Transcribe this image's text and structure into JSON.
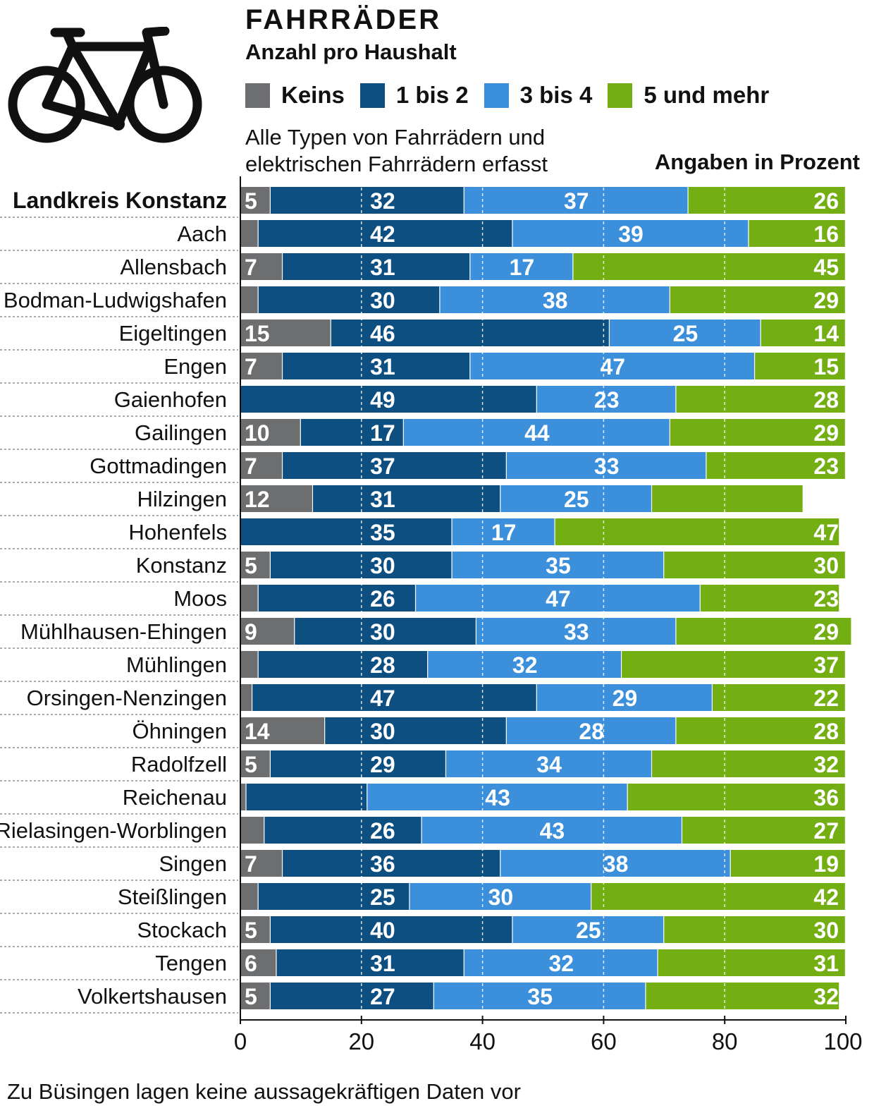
{
  "header": {
    "title": "FAHRRÄDER",
    "subtitle": "Anzahl pro Haushalt",
    "note_line1": "Alle Typen von Fahrrädern und",
    "note_line2": "elektrischen Fahrrädern erfasst",
    "units": "Angaben in Prozent"
  },
  "footnote": "Zu Büsingen  lagen keine aussagekräftigen Daten vor",
  "icons": {
    "illustration": "bicycle-icon"
  },
  "chart_data": {
    "type": "bar",
    "orientation": "horizontal",
    "stacked": true,
    "title": "FAHRRÄDER",
    "subtitle": "Anzahl pro Haushalt",
    "xlabel": "",
    "ylabel": "",
    "xlim": [
      0,
      100
    ],
    "xticks": [
      0,
      20,
      40,
      60,
      80,
      100
    ],
    "grid": "vertical dashed at 20, 40, 60, 80",
    "legend_position": "top",
    "categories": [
      "Landkreis Konstanz",
      "Aach",
      "Allensbach",
      "Bodman-Ludwigshafen",
      "Eigeltingen",
      "Engen",
      "Gaienhofen",
      "Gailingen",
      "Gottmadingen",
      "Hilzingen",
      "Hohenfels",
      "Konstanz",
      "Moos",
      "Mühlhausen-Ehingen",
      "Mühlingen",
      "Orsingen-Nenzingen",
      "Öhningen",
      "Radolfzell",
      "Reichenau",
      "Rielasingen-Worblingen",
      "Singen",
      "Steißlingen",
      "Stockach",
      "Tengen",
      "Volkertshausen"
    ],
    "series": [
      {
        "name": "Keins",
        "color": "#6d6e70",
        "values": [
          5,
          3,
          7,
          3,
          15,
          7,
          0,
          10,
          7,
          12,
          0,
          5,
          3,
          9,
          3,
          2,
          14,
          5,
          1,
          4,
          7,
          3,
          5,
          6,
          5
        ],
        "labels": [
          "5",
          "",
          "7",
          "",
          "15",
          "7",
          "",
          "10",
          "7",
          "12",
          "",
          "5",
          "",
          "9",
          "",
          "",
          "14",
          "5",
          "",
          "",
          "7",
          "",
          "5",
          "6",
          "5"
        ]
      },
      {
        "name": "1 bis 2",
        "color": "#0e4f82",
        "values": [
          32,
          42,
          31,
          30,
          46,
          31,
          49,
          17,
          37,
          31,
          35,
          30,
          26,
          30,
          28,
          47,
          30,
          29,
          20,
          26,
          36,
          25,
          40,
          31,
          27
        ],
        "labels": [
          "32",
          "42",
          "31",
          "30",
          "46",
          "31",
          "49",
          "17",
          "37",
          "31",
          "35",
          "30",
          "26",
          "30",
          "28",
          "47",
          "30",
          "29",
          "20",
          "26",
          "36",
          "25",
          "40",
          "31",
          "27"
        ]
      },
      {
        "name": "3 bis 4",
        "color": "#3b8fdb",
        "values": [
          37,
          39,
          17,
          38,
          25,
          47,
          23,
          44,
          33,
          25,
          17,
          35,
          47,
          33,
          32,
          29,
          28,
          34,
          43,
          43,
          38,
          30,
          25,
          32,
          35
        ],
        "labels": [
          "37",
          "39",
          "17",
          "38",
          "25",
          "47",
          "23",
          "44",
          "33",
          "25",
          "17",
          "35",
          "47",
          "33",
          "32",
          "29",
          "28",
          "34",
          "43",
          "43",
          "38",
          "30",
          "25",
          "32",
          "35"
        ]
      },
      {
        "name": "5 und mehr",
        "color": "#73ae12",
        "values": [
          26,
          16,
          45,
          29,
          14,
          15,
          28,
          29,
          23,
          25,
          47,
          30,
          23,
          29,
          37,
          22,
          28,
          32,
          36,
          27,
          19,
          42,
          30,
          31,
          32
        ],
        "labels": [
          "26",
          "16",
          "45",
          "29",
          "14",
          "15",
          "28",
          "29",
          "23",
          "25",
          "47",
          "30",
          "23",
          "29",
          "37",
          "22",
          "28",
          "32",
          "36",
          "27",
          "19",
          "42",
          "30",
          "31",
          "32"
        ]
      }
    ]
  }
}
